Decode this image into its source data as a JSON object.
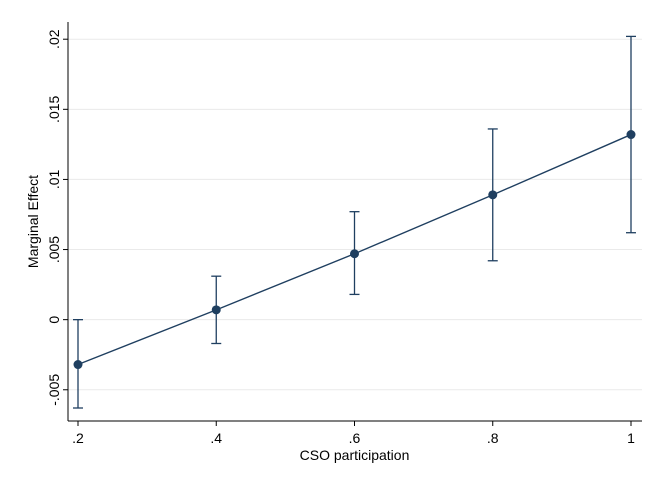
{
  "chart_data": {
    "type": "line",
    "xlabel": "CSO participation",
    "ylabel": "Marginal Effect",
    "xlim": [
      0.2,
      1.0
    ],
    "ylim": [
      -0.0063,
      0.0203
    ],
    "x_ticks": [
      0.2,
      0.4,
      0.6,
      0.8,
      1.0
    ],
    "x_tick_labels": [
      ".2",
      ".4",
      ".6",
      ".8",
      "1"
    ],
    "y_ticks": [
      -0.005,
      0,
      0.005,
      0.01,
      0.015,
      0.02
    ],
    "y_tick_labels": [
      "-.005",
      "0",
      ".005",
      ".01",
      ".015",
      ".02"
    ],
    "grid": true,
    "series": [
      {
        "x": [
          0.2,
          0.4,
          0.6,
          0.8,
          1.0
        ],
        "y": [
          -0.0032,
          0.0007,
          0.0047,
          0.0089,
          0.0132
        ],
        "ci_low": [
          -0.0063,
          -0.0017,
          0.0018,
          0.0042,
          0.0062
        ],
        "ci_high": [
          0.0,
          0.0031,
          0.0077,
          0.0136,
          0.0202
        ]
      }
    ],
    "colors": {
      "line": "#1f3f60",
      "marker": "#1f3f60",
      "grid": "#eaeaea",
      "axis": "#000000"
    }
  }
}
